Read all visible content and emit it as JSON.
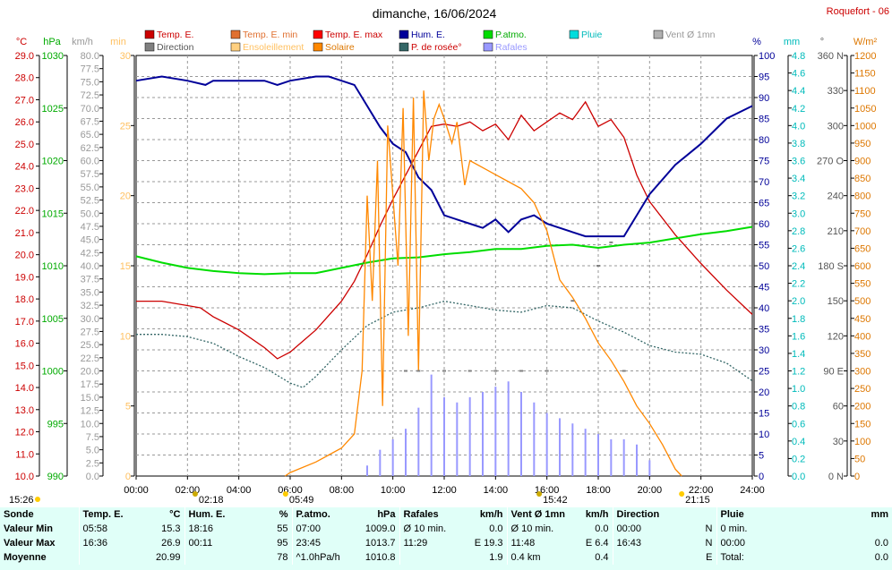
{
  "header": {
    "title": "dimanche, 16/06/2024",
    "station": "Roquefort - 06"
  },
  "legend": [
    {
      "label": "Temp. E.",
      "color": "#cc0000",
      "text_color": "#cc0000"
    },
    {
      "label": "Temp. E. min",
      "color": "#e07030",
      "text_color": "#e07030"
    },
    {
      "label": "Temp. E. max",
      "color": "#ff0000",
      "text_color": "#cc0000"
    },
    {
      "label": "Hum. E.",
      "color": "#000099",
      "text_color": "#000099"
    },
    {
      "label": "P.atmo.",
      "color": "#00dd00",
      "text_color": "#00aa00"
    },
    {
      "label": "Pluie",
      "color": "#00dddd",
      "text_color": "#00bbbb"
    },
    {
      "label": "Vent Ø 1mn",
      "color": "#b0b0b0",
      "text_color": "#999999"
    },
    {
      "label": "Direction",
      "color": "#808080",
      "text_color": "#555555"
    },
    {
      "label": "Ensoleillement",
      "color": "#ffd080",
      "text_color": "#ffc060"
    },
    {
      "label": "Solaire",
      "color": "#ff8800",
      "text_color": "#dd7700"
    },
    {
      "label": "P. de rosée°",
      "color": "#336666",
      "text_color": "#cc0000"
    },
    {
      "label": "Rafales",
      "color": "#9999ff",
      "text_color": "#9999ff"
    }
  ],
  "axes": {
    "temp": {
      "unit": "°C",
      "color": "#cc0000",
      "ticks": [
        "29.0",
        "28.0",
        "27.0",
        "26.0",
        "25.0",
        "24.0",
        "23.0",
        "22.0",
        "21.0",
        "20.0",
        "19.0",
        "18.0",
        "17.0",
        "16.0",
        "15.0",
        "14.0",
        "13.0",
        "12.0",
        "11.0",
        "10.0"
      ]
    },
    "press": {
      "unit": "hPa",
      "color": "#00aa00",
      "ticks": [
        "1030",
        "1025",
        "1020",
        "1015",
        "1010",
        "1005",
        "1000",
        "995",
        "990"
      ]
    },
    "wind": {
      "unit": "km/h",
      "color": "#999999",
      "ticks": [
        "80.0",
        "77.5",
        "75.0",
        "72.5",
        "70.0",
        "67.5",
        "65.0",
        "62.5",
        "60.0",
        "57.5",
        "55.0",
        "52.5",
        "50.0",
        "47.5",
        "45.0",
        "42.5",
        "40.0",
        "37.5",
        "35.0",
        "32.5",
        "30.0",
        "27.5",
        "25.0",
        "22.5",
        "20.0",
        "17.5",
        "15.0",
        "12.5",
        "10.0",
        "7.5",
        "5.0",
        "2.5",
        "0.0"
      ]
    },
    "sun": {
      "unit": "min",
      "color": "#ffc060",
      "ticks": [
        "30",
        "25",
        "20",
        "15",
        "10",
        "5",
        "0"
      ]
    },
    "hum": {
      "unit": "%",
      "color": "#000099",
      "ticks": [
        "100",
        "95",
        "90",
        "85",
        "80",
        "75",
        "70",
        "65",
        "60",
        "55",
        "50",
        "45",
        "40",
        "35",
        "30",
        "25",
        "20",
        "15",
        "10",
        "5",
        "0"
      ]
    },
    "rain": {
      "unit": "mm",
      "color": "#00bbbb",
      "ticks": [
        "4.8",
        "4.6",
        "4.4",
        "4.2",
        "4.0",
        "3.8",
        "3.6",
        "3.4",
        "3.2",
        "3.0",
        "2.8",
        "2.6",
        "2.4",
        "2.2",
        "2.0",
        "1.8",
        "1.6",
        "1.4",
        "1.2",
        "1.0",
        "0.8",
        "0.6",
        "0.4",
        "0.2",
        "0.0"
      ]
    },
    "dir": {
      "unit": "°",
      "color": "#555555",
      "ticks": [
        "360 N",
        "330",
        "300",
        "270 O",
        "240",
        "210",
        "180 S",
        "150",
        "120",
        "90 E",
        "60",
        "30",
        "0 N"
      ]
    },
    "solar": {
      "unit": "W/m²",
      "color": "#dd7700",
      "ticks": [
        "1200",
        "1150",
        "1100",
        "1050",
        "1000",
        "950",
        "900",
        "850",
        "800",
        "750",
        "700",
        "650",
        "600",
        "550",
        "500",
        "450",
        "400",
        "350",
        "300",
        "250",
        "200",
        "150",
        "100",
        "50",
        "0"
      ]
    },
    "time": {
      "ticks": [
        "00:00",
        "02:00",
        "04:00",
        "06:00",
        "08:00",
        "10:00",
        "12:00",
        "14:00",
        "16:00",
        "18:00",
        "20:00",
        "22:00",
        "24:00"
      ]
    }
  },
  "events": [
    {
      "label": "15:26",
      "type": "moon",
      "hour": -5
    },
    {
      "label": "02:18",
      "type": "moonset",
      "hour": 2.3
    },
    {
      "label": "05:49",
      "type": "sunrise",
      "hour": 5.82
    },
    {
      "label": "15:42",
      "type": "moonrise",
      "hour": 15.7
    },
    {
      "label": "21:15",
      "type": "sunset",
      "hour": 21.25
    }
  ],
  "chart_data": {
    "type": "line",
    "x_unit": "hours",
    "xlim": [
      0,
      24
    ],
    "series": [
      {
        "name": "Temp. E.",
        "axis": "temp",
        "ylim": [
          10,
          29
        ],
        "x": [
          0,
          1,
          2,
          2.5,
          3,
          4,
          5,
          5.5,
          6,
          7,
          8,
          8.5,
          9,
          9.5,
          10,
          10.5,
          11,
          11.5,
          12,
          12.5,
          13,
          13.5,
          14,
          14.5,
          15,
          15.5,
          16,
          16.5,
          17,
          17.5,
          18,
          18.5,
          19,
          19.5,
          20,
          21,
          22,
          23,
          24
        ],
        "y": [
          17.9,
          17.9,
          17.7,
          17.6,
          17.2,
          16.6,
          15.8,
          15.3,
          15.6,
          16.6,
          17.9,
          18.8,
          20.0,
          21.3,
          22.5,
          23.6,
          24.7,
          25.8,
          25.9,
          25.8,
          26.0,
          25.6,
          25.9,
          25.2,
          26.3,
          25.6,
          26.0,
          26.4,
          26.1,
          26.9,
          25.8,
          26.1,
          25.3,
          23.6,
          22.4,
          20.9,
          19.6,
          18.4,
          17.3
        ]
      },
      {
        "name": "Hum. E.",
        "axis": "hum",
        "ylim": [
          0,
          100
        ],
        "x": [
          0,
          1,
          2,
          2.7,
          3,
          5,
          5.5,
          6,
          7,
          7.5,
          8,
          8.5,
          9,
          9.5,
          10,
          10.5,
          11,
          11.5,
          12,
          12.5,
          13,
          13.5,
          14,
          14.5,
          15,
          15.5,
          16,
          16.5,
          17,
          17.5,
          18,
          18.5,
          19,
          19.5,
          20,
          21,
          22,
          23,
          24
        ],
        "y": [
          94,
          95,
          94,
          93,
          94,
          94,
          93,
          94,
          95,
          95,
          94,
          93,
          88,
          83,
          79,
          77,
          71,
          68,
          62,
          61,
          60,
          59,
          61,
          58,
          61,
          62,
          60,
          59,
          58,
          57,
          57,
          57,
          57,
          62,
          67,
          74,
          79,
          85,
          88
        ]
      },
      {
        "name": "P.atmo.",
        "axis": "press",
        "ylim": [
          990,
          1030
        ],
        "x": [
          0,
          1,
          2,
          3,
          4,
          5,
          6,
          7,
          8,
          9,
          10,
          11,
          12,
          13,
          14,
          15,
          16,
          17,
          18,
          19,
          20,
          21,
          22,
          23,
          24
        ],
        "y": [
          1010.9,
          1010.3,
          1009.8,
          1009.5,
          1009.3,
          1009.2,
          1009.3,
          1009.3,
          1009.8,
          1010.3,
          1010.7,
          1010.8,
          1011.1,
          1011.3,
          1011.6,
          1011.6,
          1011.9,
          1012.0,
          1011.7,
          1012.0,
          1012.2,
          1012.6,
          1013.0,
          1013.3,
          1013.7
        ]
      },
      {
        "name": "P. de rosée°",
        "axis": "temp",
        "ylim": [
          10,
          29
        ],
        "x": [
          0,
          1,
          2,
          3,
          4,
          5,
          6,
          6.5,
          7,
          8,
          9,
          10,
          11,
          12,
          13,
          14,
          15,
          16,
          17,
          18,
          19,
          20,
          21,
          22,
          23,
          24
        ],
        "y": [
          16.4,
          16.4,
          16.3,
          16.0,
          15.4,
          14.9,
          14.2,
          14.0,
          14.5,
          15.7,
          16.8,
          17.4,
          17.6,
          17.9,
          17.7,
          17.5,
          17.4,
          17.7,
          17.6,
          17.0,
          16.5,
          15.9,
          15.6,
          15.5,
          15.1,
          14.3
        ]
      },
      {
        "name": "Solaire",
        "axis": "solar",
        "ylim": [
          0,
          1200
        ],
        "x": [
          5.8,
          6,
          7,
          7.5,
          8,
          8.5,
          8.8,
          9,
          9.2,
          9.4,
          9.6,
          9.8,
          10,
          10.2,
          10.4,
          10.6,
          10.8,
          11,
          11.2,
          11.4,
          11.6,
          11.8,
          12,
          12.3,
          12.5,
          12.8,
          13,
          13.5,
          14,
          14.5,
          15,
          15.5,
          16,
          16.5,
          17,
          17.5,
          18,
          18.5,
          19,
          19.5,
          20,
          20.5,
          21,
          21.25
        ],
        "y": [
          0,
          10,
          40,
          60,
          80,
          120,
          300,
          800,
          500,
          900,
          200,
          1000,
          800,
          600,
          1050,
          400,
          1080,
          300,
          1100,
          900,
          1020,
          1060,
          1020,
          950,
          1010,
          830,
          900,
          880,
          860,
          840,
          820,
          780,
          700,
          560,
          510,
          450,
          380,
          330,
          270,
          200,
          150,
          90,
          20,
          0
        ]
      },
      {
        "name": "Rafales",
        "axis": "wind",
        "ylim": [
          0,
          80
        ],
        "x": [
          9,
          9.5,
          10,
          10.5,
          11,
          11.5,
          12,
          12.5,
          13,
          13.5,
          14,
          14.5,
          15,
          15.5,
          16,
          16.5,
          17,
          17.5,
          18,
          18.5,
          19,
          19.5,
          20
        ],
        "y": [
          2,
          5,
          7,
          9,
          13,
          19.3,
          15,
          14,
          15,
          16,
          17,
          18,
          16,
          14,
          12,
          11,
          10,
          9,
          8,
          7,
          7,
          6,
          3
        ]
      },
      {
        "name": "Direction",
        "axis": "dir",
        "ylim": [
          0,
          360
        ],
        "x": [
          10.5,
          11,
          12,
          13,
          14,
          15,
          16,
          17,
          18,
          18.5,
          19
        ],
        "y": [
          90,
          90,
          90,
          90,
          90,
          90,
          90,
          150,
          180,
          200,
          90
        ]
      }
    ]
  },
  "stats": {
    "headers": [
      {
        "title": "Sonde",
        "unit": ""
      },
      {
        "title": "Temp. E.",
        "unit": "°C"
      },
      {
        "title": "Hum. E.",
        "unit": "%"
      },
      {
        "title": "P.atmo.",
        "unit": "hPa"
      },
      {
        "title": "Rafales",
        "unit": "km/h"
      },
      {
        "title": "Vent Ø 1mn",
        "unit": "km/h"
      },
      {
        "title": "Direction",
        "unit": ""
      },
      {
        "title": "Pluie",
        "unit": "mm"
      }
    ],
    "rows": [
      {
        "label": "Valeur Min",
        "cells": [
          [
            "05:58",
            "15.3"
          ],
          [
            "18:16",
            "55"
          ],
          [
            "07:00",
            "1009.0"
          ],
          [
            "Ø 10 min.",
            "0.0"
          ],
          [
            "Ø 10 min.",
            "0.0"
          ],
          [
            "00:00",
            "N"
          ],
          [
            "0 min.",
            ""
          ]
        ]
      },
      {
        "label": "Valeur Max",
        "cells": [
          [
            "16:36",
            "26.9"
          ],
          [
            "00:11",
            "95"
          ],
          [
            "23:45",
            "1013.7"
          ],
          [
            "11:29",
            "E 19.3"
          ],
          [
            "11:48",
            "E 6.4"
          ],
          [
            "16:43",
            "N"
          ],
          [
            "00:00",
            "0.0"
          ]
        ]
      },
      {
        "label": "Moyenne",
        "cells": [
          [
            "",
            "20.99"
          ],
          [
            "",
            "78"
          ],
          [
            "^1.0hPa/h",
            "1010.8"
          ],
          [
            "",
            "1.9"
          ],
          [
            "0.4 km",
            "0.4"
          ],
          [
            "",
            "E"
          ],
          [
            "Total:",
            "0.0"
          ]
        ]
      }
    ]
  }
}
